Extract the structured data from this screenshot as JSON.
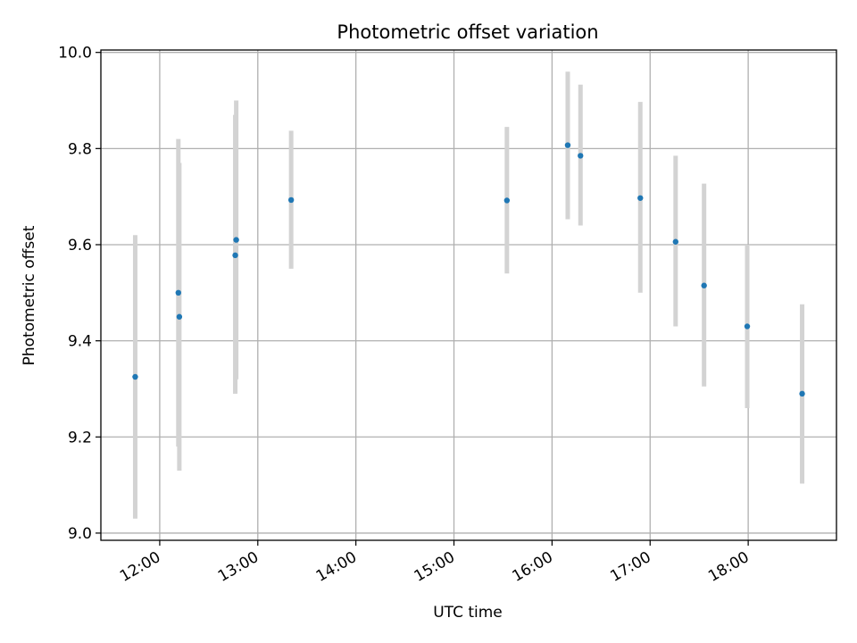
{
  "chart_data": {
    "type": "scatter",
    "title": "Photometric offset variation",
    "xlabel": "UTC time",
    "ylabel": "Photometric offset",
    "xlim": [
      11.4,
      18.9
    ],
    "ylim": [
      8.985,
      10.005
    ],
    "grid": true,
    "x_ticks": [
      {
        "value": 12,
        "label": "12:00"
      },
      {
        "value": 13,
        "label": "13:00"
      },
      {
        "value": 14,
        "label": "14:00"
      },
      {
        "value": 15,
        "label": "15:00"
      },
      {
        "value": 16,
        "label": "16:00"
      },
      {
        "value": 17,
        "label": "17:00"
      },
      {
        "value": 18,
        "label": "18:00"
      }
    ],
    "y_ticks": [
      {
        "value": 9.0,
        "label": "9.0"
      },
      {
        "value": 9.2,
        "label": "9.2"
      },
      {
        "value": 9.4,
        "label": "9.4"
      },
      {
        "value": 9.6,
        "label": "9.6"
      },
      {
        "value": 9.8,
        "label": "9.8"
      },
      {
        "value": 10.0,
        "label": "10.0"
      }
    ],
    "points": [
      {
        "x": 11.75,
        "y": 9.325,
        "low": 9.03,
        "high": 9.62
      },
      {
        "x": 12.19,
        "y": 9.5,
        "low": 9.18,
        "high": 9.82
      },
      {
        "x": 12.2,
        "y": 9.45,
        "low": 9.13,
        "high": 9.77
      },
      {
        "x": 12.78,
        "y": 9.61,
        "low": 9.32,
        "high": 9.9
      },
      {
        "x": 12.77,
        "y": 9.578,
        "low": 9.29,
        "high": 9.87
      },
      {
        "x": 13.34,
        "y": 9.693,
        "low": 9.55,
        "high": 9.837
      },
      {
        "x": 15.54,
        "y": 9.692,
        "low": 9.54,
        "high": 9.845
      },
      {
        "x": 16.16,
        "y": 9.807,
        "low": 9.653,
        "high": 9.96
      },
      {
        "x": 16.29,
        "y": 9.785,
        "low": 9.64,
        "high": 9.933
      },
      {
        "x": 16.9,
        "y": 9.697,
        "low": 9.5,
        "high": 9.897
      },
      {
        "x": 17.26,
        "y": 9.606,
        "low": 9.43,
        "high": 9.785
      },
      {
        "x": 17.55,
        "y": 9.515,
        "low": 9.305,
        "high": 9.727
      },
      {
        "x": 17.99,
        "y": 9.43,
        "low": 9.26,
        "high": 9.6
      },
      {
        "x": 18.55,
        "y": 9.29,
        "low": 9.103,
        "high": 9.476
      }
    ],
    "marker_color": "#1f77b4",
    "errorbar_color": "#d3d3d3",
    "grid_color": "#b0b0b0"
  }
}
